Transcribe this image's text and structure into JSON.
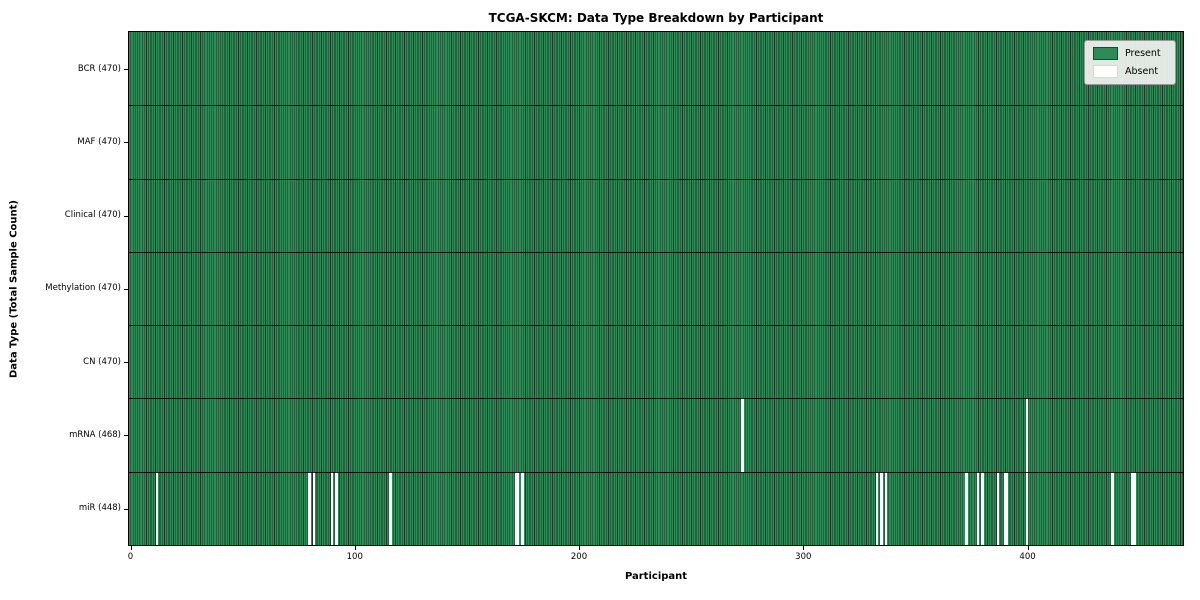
{
  "chart_data": {
    "type": "heatmap",
    "title": "TCGA-SKCM: Data Type Breakdown by Participant",
    "xlabel": "Participant",
    "ylabel": "Data Type (Total Sample Count)",
    "x_ticks": [
      "0",
      "100",
      "200",
      "300",
      "400"
    ],
    "x_tick_values": [
      0,
      100,
      200,
      300,
      400
    ],
    "total_participants": 470,
    "x_range": [
      -0.5,
      469.5
    ],
    "grid": false,
    "legend_position": "upper right",
    "legend_items": [
      {
        "label": "Present",
        "color": "#2e8b57"
      },
      {
        "label": "Absent",
        "color": "#ffffff"
      }
    ],
    "colors": {
      "present_fill": "#2e8b57",
      "bar_edge": "#163d25",
      "absent_fill": "#ffffff",
      "row_separator": "#000000",
      "legend_background": "#f2f3ef"
    },
    "rows": [
      {
        "label": "BCR (470)",
        "data_type": "BCR",
        "sample_count": 470,
        "absent_participants": []
      },
      {
        "label": "MAF (470)",
        "data_type": "MAF",
        "sample_count": 470,
        "absent_participants": []
      },
      {
        "label": "Clinical (470)",
        "data_type": "Clinical",
        "sample_count": 470,
        "absent_participants": []
      },
      {
        "label": "Methylation (470)",
        "data_type": "Methylation",
        "sample_count": 470,
        "absent_participants": []
      },
      {
        "label": "CN (470)",
        "data_type": "CN",
        "sample_count": 470,
        "absent_participants": []
      },
      {
        "label": "mRNA (468)",
        "data_type": "mRNA",
        "sample_count": 468,
        "absent_participants": [
          273,
          400
        ]
      },
      {
        "label": "miR (448)",
        "data_type": "miR",
        "sample_count": 448,
        "absent_participants": [
          12,
          80,
          82,
          90,
          92,
          116,
          172,
          173,
          175,
          333,
          335,
          337,
          373,
          378,
          380,
          387,
          390,
          391,
          400,
          438,
          447,
          448
        ]
      }
    ]
  }
}
